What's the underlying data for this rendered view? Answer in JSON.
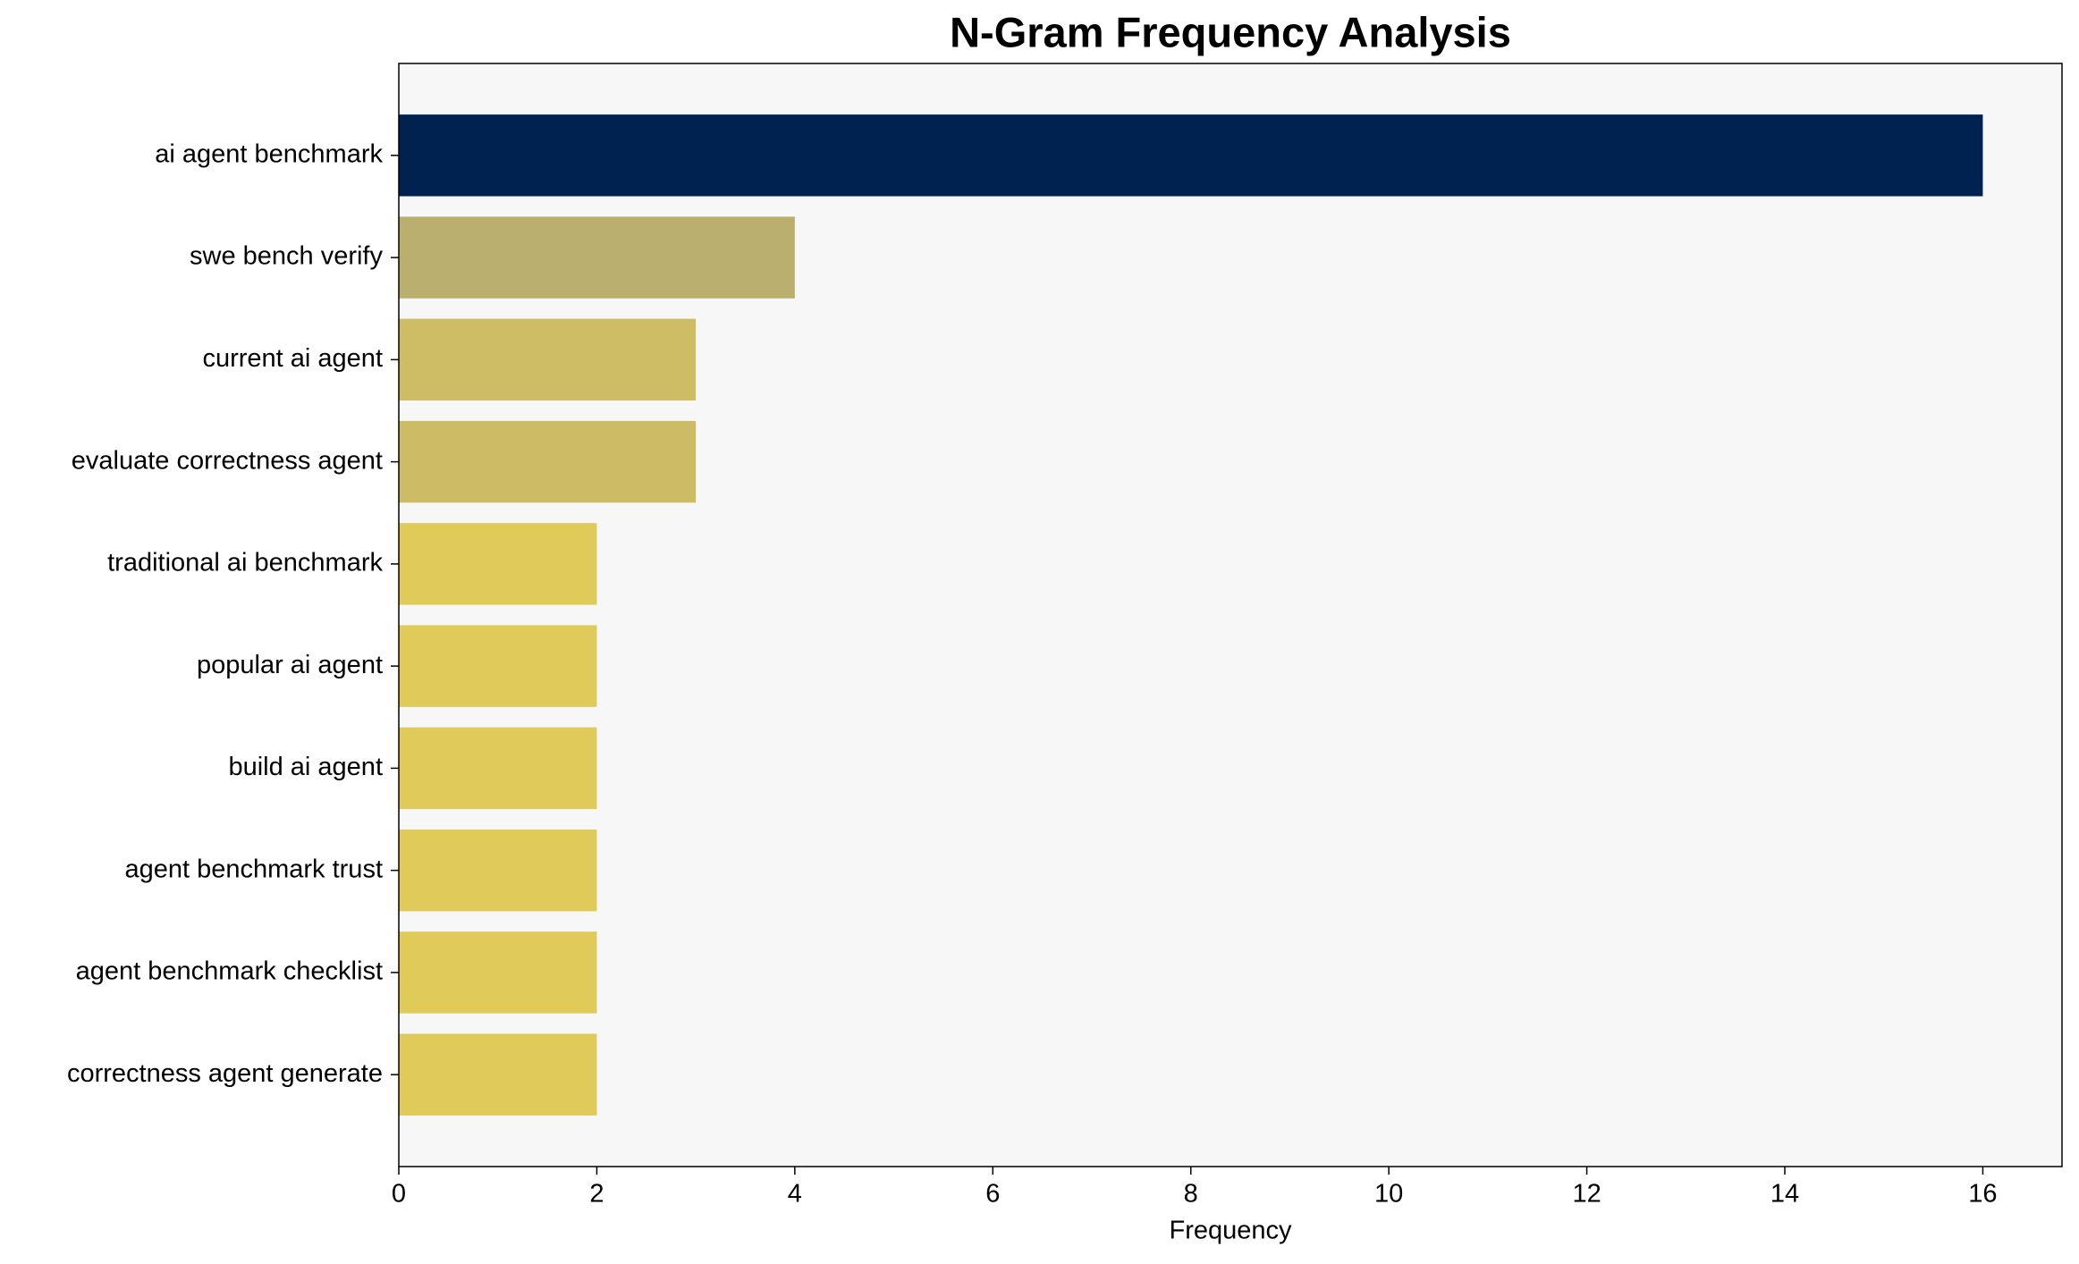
{
  "chart_data": {
    "type": "barh",
    "title": "N-Gram Frequency Analysis",
    "xlabel": "Frequency",
    "categories": [
      "ai agent benchmark",
      "swe bench verify",
      "current ai agent",
      "evaluate correctness agent",
      "traditional ai benchmark",
      "popular ai agent",
      "build ai agent",
      "agent benchmark trust",
      "agent benchmark checklist",
      "correctness agent generate"
    ],
    "values": [
      16,
      4,
      3,
      3,
      2,
      2,
      2,
      2,
      2,
      2
    ],
    "colors": [
      "#002251",
      "#bbaf6f",
      "#cebd64",
      "#cdbb66",
      "#dfca5a",
      "#dfca5a",
      "#dfca5a",
      "#dfca5a",
      "#dfca5a",
      "#dfca5a"
    ],
    "xlim": [
      0,
      16.8
    ],
    "xticks": [
      0,
      2,
      4,
      6,
      8,
      10,
      12,
      14,
      16
    ],
    "grid": false
  }
}
